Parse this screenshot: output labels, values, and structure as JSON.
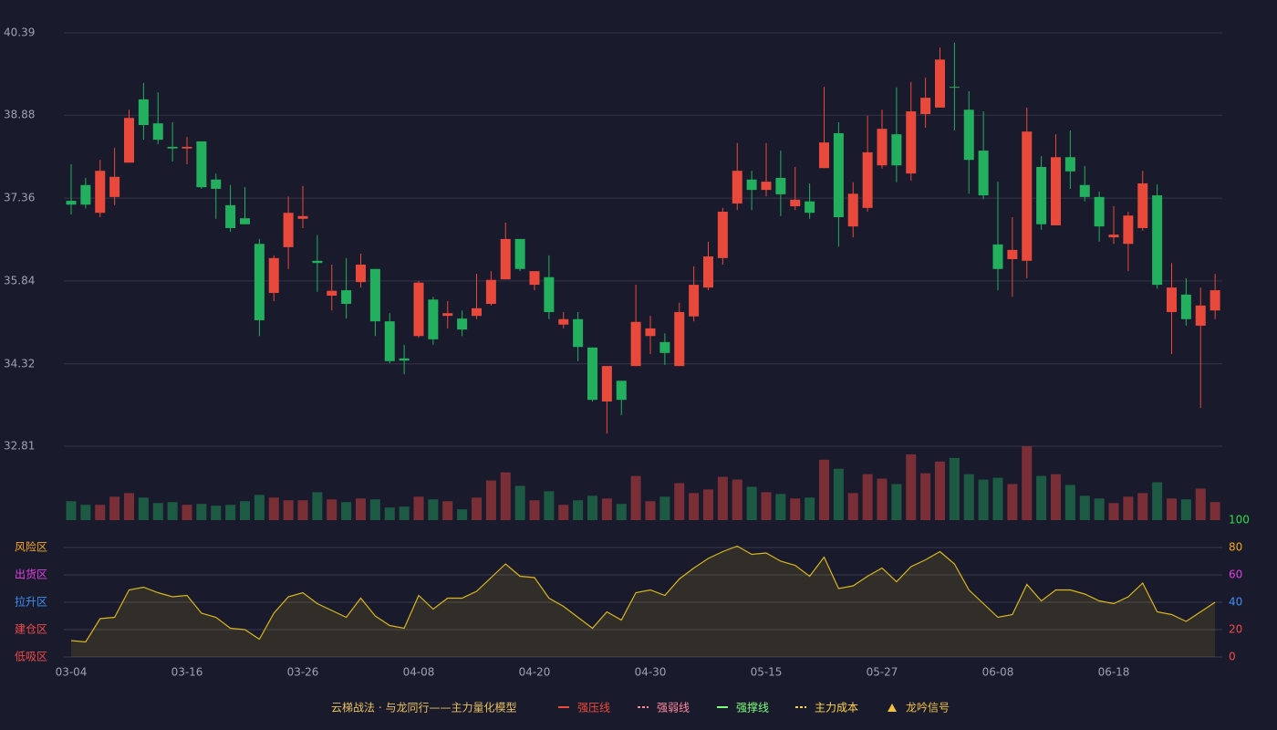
{
  "chart_data": [
    {
      "type": "candlestick",
      "categories": [
        "03-04",
        null,
        null,
        null,
        null,
        null,
        null,
        null,
        "03-16",
        null,
        null,
        null,
        null,
        null,
        null,
        null,
        "03-26",
        null,
        null,
        null,
        null,
        null,
        null,
        null,
        "04-08",
        null,
        null,
        null,
        null,
        null,
        null,
        null,
        "04-20",
        null,
        null,
        null,
        null,
        null,
        null,
        null,
        "04-30",
        null,
        null,
        null,
        null,
        null,
        null,
        null,
        "05-15",
        null,
        null,
        null,
        null,
        null,
        null,
        null,
        "05-27",
        null,
        null,
        null,
        null,
        null,
        null,
        null,
        "06-08",
        null,
        null,
        null,
        null,
        null,
        null,
        null,
        "06-18",
        null,
        null,
        null,
        null,
        null,
        null,
        null
      ],
      "open": [
        37.31,
        37.6,
        37.09,
        37.38,
        38.01,
        39.17,
        38.73,
        38.3,
        38.27,
        38.4,
        37.7,
        37.23,
        36.99,
        36.52,
        35.62,
        36.46,
        36.98,
        36.21,
        35.57,
        35.67,
        35.82,
        36.06,
        35.1,
        34.42,
        34.83,
        35.5,
        35.2,
        35.15,
        35.2,
        35.42,
        35.87,
        36.61,
        35.77,
        35.91,
        35.04,
        35.14,
        34.62,
        33.63,
        34.01,
        34.28,
        34.83,
        34.72,
        34.28,
        35.19,
        35.72,
        36.26,
        37.26,
        37.7,
        37.51,
        37.73,
        37.21,
        37.3,
        37.91,
        38.55,
        36.84,
        37.18,
        37.96,
        38.53,
        37.81,
        38.9,
        39.02,
        39.4,
        38.98,
        38.23,
        36.51,
        36.24,
        36.21,
        37.93,
        36.86,
        38.11,
        37.6,
        37.38,
        36.64,
        36.52,
        36.81,
        37.41,
        35.27,
        35.59,
        35.02,
        35.3
      ],
      "high": [
        37.98,
        37.73,
        38.06,
        38.28,
        38.98,
        39.47,
        39.3,
        38.75,
        38.48,
        38.4,
        37.81,
        37.6,
        37.56,
        36.61,
        36.31,
        37.39,
        37.58,
        36.68,
        36.14,
        36.26,
        36.34,
        36.06,
        35.25,
        34.67,
        35.84,
        35.55,
        35.47,
        35.3,
        35.97,
        36.02,
        36.91,
        36.61,
        36.02,
        36.31,
        35.27,
        35.27,
        34.62,
        34.28,
        34.01,
        35.77,
        35.2,
        34.88,
        35.44,
        36.11,
        36.56,
        37.18,
        38.37,
        37.86,
        38.37,
        38.23,
        37.93,
        37.63,
        39.4,
        38.75,
        37.65,
        38.87,
        38.98,
        39.39,
        39.49,
        39.57,
        40.12,
        40.21,
        39.32,
        38.95,
        37.66,
        37.01,
        39.02,
        38.13,
        38.53,
        38.6,
        37.95,
        37.48,
        37.21,
        37.11,
        37.86,
        37.61,
        36.17,
        35.89,
        35.72,
        35.97
      ],
      "low": [
        37.06,
        37.17,
        37.01,
        37.23,
        38.01,
        38.43,
        38.35,
        38.03,
        37.98,
        37.53,
        36.98,
        36.74,
        36.88,
        34.83,
        35.47,
        36.06,
        36.81,
        35.64,
        35.3,
        35.15,
        35.72,
        34.83,
        34.33,
        34.13,
        34.8,
        34.67,
        34.97,
        34.83,
        35.14,
        35.39,
        35.87,
        36.02,
        35.67,
        35.14,
        34.97,
        34.37,
        33.63,
        33.04,
        33.38,
        34.28,
        34.5,
        34.3,
        34.28,
        35.1,
        35.67,
        36.14,
        37.14,
        37.14,
        37.39,
        37.03,
        37.14,
        36.98,
        37.91,
        36.47,
        36.64,
        37.11,
        37.9,
        37.65,
        37.68,
        38.65,
        39.02,
        38.6,
        37.44,
        37.34,
        35.67,
        35.55,
        35.89,
        36.78,
        36.86,
        37.53,
        37.3,
        36.56,
        36.52,
        36.02,
        36.76,
        35.7,
        34.5,
        35.02,
        33.51,
        35.14
      ],
      "close": [
        37.24,
        37.24,
        37.86,
        37.75,
        38.83,
        38.7,
        38.43,
        38.27,
        38.3,
        37.56,
        37.53,
        36.81,
        36.88,
        35.12,
        36.26,
        37.09,
        37.03,
        36.17,
        35.66,
        35.42,
        36.14,
        35.1,
        34.37,
        34.38,
        35.81,
        34.77,
        35.25,
        34.95,
        35.34,
        35.86,
        36.61,
        36.06,
        36.02,
        35.27,
        35.14,
        34.63,
        33.66,
        34.28,
        33.66,
        35.09,
        34.97,
        34.52,
        35.27,
        35.77,
        36.29,
        37.11,
        37.86,
        37.51,
        37.66,
        37.43,
        37.33,
        37.09,
        38.38,
        37.01,
        37.44,
        38.2,
        38.63,
        37.96,
        38.95,
        39.2,
        39.9,
        39.39,
        38.06,
        37.41,
        36.06,
        36.41,
        38.58,
        36.88,
        38.11,
        37.85,
        37.38,
        36.84,
        36.69,
        37.04,
        37.63,
        35.77,
        35.72,
        35.14,
        35.39,
        35.67
      ],
      "volume": [
        21,
        17,
        17,
        26,
        30,
        25,
        19,
        20,
        17,
        18,
        16,
        17,
        21,
        28,
        25,
        22,
        22,
        31,
        23,
        20,
        24,
        23,
        14,
        15,
        26,
        23,
        21,
        12,
        25,
        44,
        53,
        38,
        22,
        32,
        17,
        22,
        27,
        24,
        18,
        49,
        21,
        26,
        41,
        30,
        34,
        48,
        45,
        37,
        31,
        29,
        24,
        25,
        67,
        57,
        30,
        51,
        46,
        40,
        73,
        52,
        65,
        69,
        51,
        45,
        47,
        40,
        82,
        49,
        51,
        39,
        27,
        24,
        19,
        26,
        30,
        42,
        24,
        23,
        35,
        20
      ],
      "ylim": [
        32.81,
        40.39
      ],
      "yticks": [
        32.81,
        34.32,
        35.84,
        37.36,
        38.88,
        40.39
      ],
      "up_color": "#e8493b",
      "down_color": "#22b05e",
      "volume_up_color": "#7a2f36",
      "volume_down_color": "#1d5a44",
      "grid": true
    },
    {
      "type": "line",
      "values": [
        12,
        11,
        28,
        29,
        49,
        51,
        47,
        44,
        45,
        32,
        29,
        21,
        20,
        13,
        32,
        44,
        47,
        39,
        34,
        29,
        43,
        30,
        23,
        21,
        45,
        35,
        43,
        43,
        48,
        58,
        68,
        59,
        58,
        43,
        37,
        29,
        21,
        33,
        27,
        47,
        49,
        45,
        57,
        65,
        72,
        77,
        81,
        75,
        76,
        70,
        67,
        59,
        73,
        50,
        52,
        59,
        65,
        55,
        66,
        71,
        77,
        68,
        49,
        39,
        29,
        31,
        53,
        41,
        49,
        49,
        46,
        41,
        39,
        44,
        54,
        33,
        31,
        26,
        33,
        40
      ],
      "color": "#d8b61c",
      "ylim": [
        0,
        100
      ],
      "yticks": [
        0,
        20,
        40,
        60,
        80,
        100
      ],
      "ytick_colors": [
        "#f04a4a",
        "#f04a4a",
        "#3d8ef0",
        "#e040e0",
        "#f5a623",
        "#2fdc4a"
      ],
      "zones": [
        {
          "value": 80,
          "label": "风险区",
          "color": "#f5a623"
        },
        {
          "value": 60,
          "label": "出货区",
          "color": "#e040e0"
        },
        {
          "value": 40,
          "label": "拉升区",
          "color": "#3d8ef0"
        },
        {
          "value": 20,
          "label": "建仓区",
          "color": "#f04a4a"
        },
        {
          "value": 0,
          "label": "低吸区",
          "color": "#f04a4a"
        }
      ],
      "grid": true
    }
  ],
  "legend": {
    "title": "云梯战法 · 与龙同行——主力量化模型",
    "title_color": "#e8c060",
    "items": [
      {
        "name": "强压线",
        "color": "#f04a3a",
        "style": "solid"
      },
      {
        "name": "强弱线",
        "color": "#ff8aa0",
        "style": "dashed"
      },
      {
        "name": "强撑线",
        "color": "#7dff7d",
        "style": "solid"
      },
      {
        "name": "主力成本",
        "color": "#ffd54a",
        "style": "dashed"
      },
      {
        "name": "龙吟信号",
        "color": "#f0c040",
        "style": "triangle"
      }
    ]
  }
}
